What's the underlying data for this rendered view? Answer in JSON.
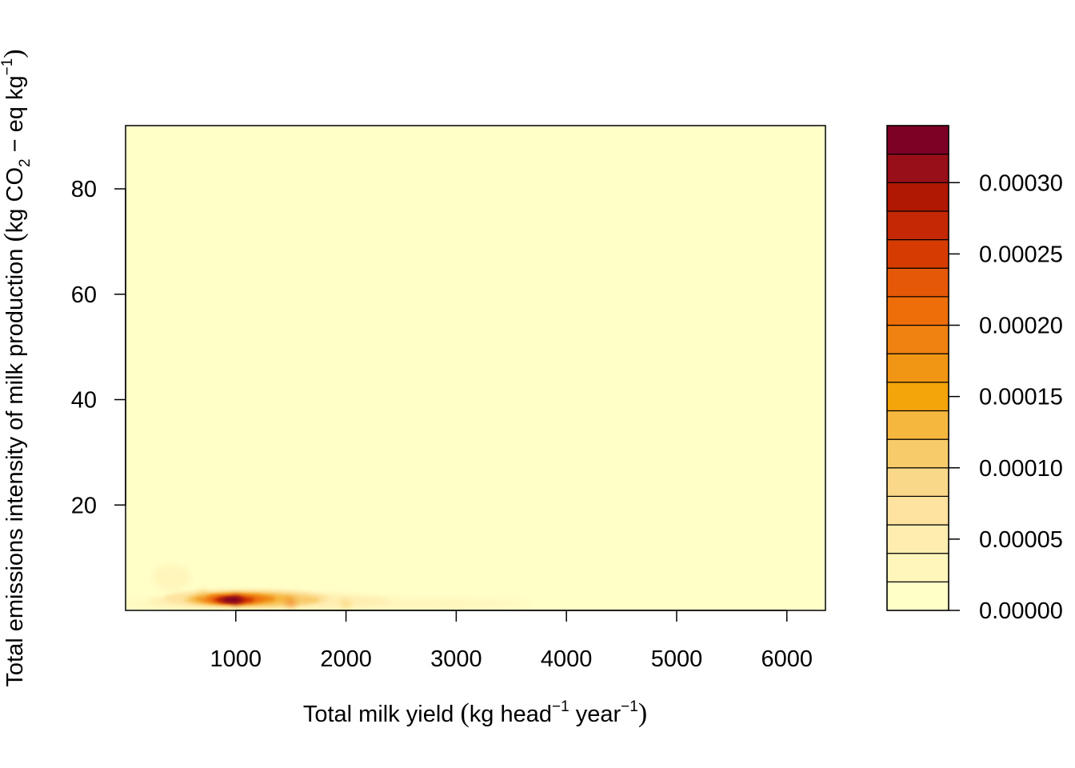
{
  "chart_data": {
    "type": "heatmap",
    "subtype": "filled-contour-2d-density",
    "title": "",
    "xlabel": {
      "lead": "Total milk yield ",
      "unit_kg": "kg head",
      "exp1": "−1",
      "unit_year": " year",
      "exp2": "−1"
    },
    "ylabel": {
      "lead": "Total emissions intensity of milk production ",
      "unit_a": "kg CO",
      "sub": "2",
      "unit_b": " − eq kg",
      "exp": "−1"
    },
    "xlim": [
      0,
      6350
    ],
    "ylim": [
      0,
      92
    ],
    "x_ticks": [
      1000,
      2000,
      3000,
      4000,
      5000,
      6000
    ],
    "x_tick_labels": [
      "1000",
      "2000",
      "3000",
      "4000",
      "5000",
      "6000"
    ],
    "y_ticks": [
      20,
      40,
      60,
      80
    ],
    "y_tick_labels": [
      "20",
      "40",
      "60",
      "80"
    ],
    "density_peak": {
      "x": 1000,
      "y": 2,
      "value": 0.00034
    },
    "density_ridge": [
      {
        "x": 300,
        "y": 7,
        "value": 3e-05
      },
      {
        "x": 700,
        "y": 3,
        "value": 0.00012
      },
      {
        "x": 1000,
        "y": 2,
        "value": 0.00034
      },
      {
        "x": 1500,
        "y": 1.5,
        "value": 0.00022
      },
      {
        "x": 2000,
        "y": 1.2,
        "value": 0.0001
      },
      {
        "x": 3000,
        "y": 1,
        "value": 3e-05
      },
      {
        "x": 3700,
        "y": 0.9,
        "value": 1e-05
      }
    ],
    "legend": {
      "placement": "right",
      "range": [
        0,
        0.00034
      ],
      "levels": [
        0,
        2e-05,
        4e-05,
        6e-05,
        8e-05,
        0.0001,
        0.00012,
        0.00014,
        0.00016,
        0.00018,
        0.0002,
        0.00022,
        0.00024,
        0.00026,
        0.00028,
        0.0003,
        0.00032,
        0.00034
      ],
      "colors": [
        "#FFFFC8",
        "#FFF6BC",
        "#FFEDB0",
        "#FDE39F",
        "#FAD889",
        "#F8CB6A",
        "#F6B73F",
        "#F4A50A",
        "#F19614",
        "#EF8211",
        "#EE6F0A",
        "#E45807",
        "#D63C02",
        "#C42805",
        "#B01804",
        "#990F19",
        "#7D0025"
      ],
      "ticks": [
        0,
        5e-05,
        0.0001,
        0.00015,
        0.0002,
        0.00025,
        0.0003
      ],
      "tick_labels": [
        "0.00000",
        "0.00005",
        "0.00010",
        "0.00015",
        "0.00020",
        "0.00025",
        "0.00030"
      ]
    },
    "grid": false
  }
}
